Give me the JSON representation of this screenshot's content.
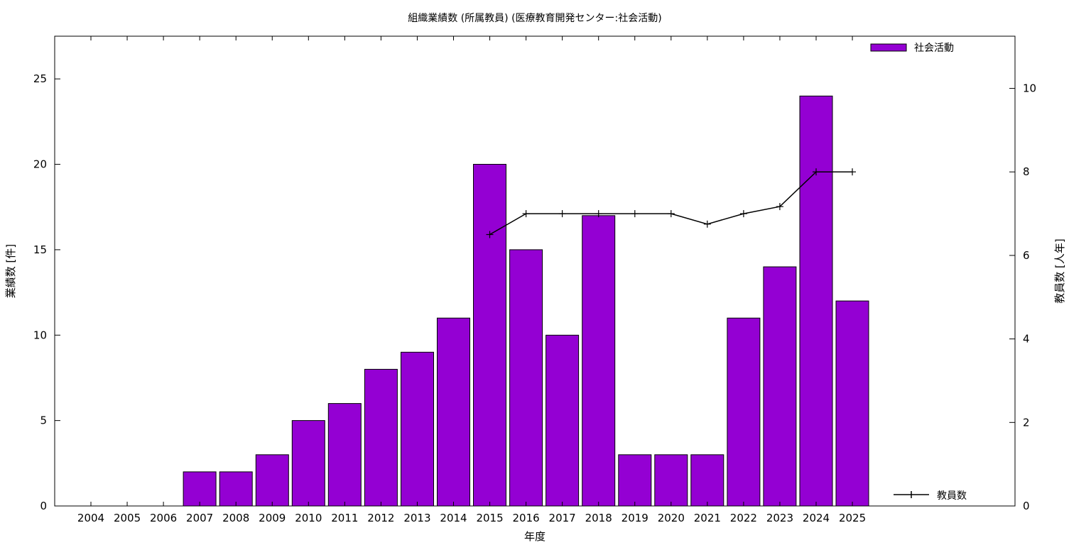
{
  "chart_data": {
    "type": "bar",
    "title": "組織業績数 (所属教員) (医療教育開発センター:社会活動)",
    "xlabel": "年度",
    "ylabel": "業績数 [件]",
    "y2label": "教員数 [人年]",
    "categories": [
      "2004",
      "2005",
      "2006",
      "2007",
      "2008",
      "2009",
      "2010",
      "2011",
      "2012",
      "2013",
      "2014",
      "2015",
      "2016",
      "2017",
      "2018",
      "2019",
      "2020",
      "2021",
      "2022",
      "2023",
      "2024",
      "2025"
    ],
    "ylim": [
      0,
      27.5
    ],
    "y2lim": [
      0,
      11.25
    ],
    "yticks": [
      0,
      5,
      10,
      15,
      20,
      25
    ],
    "y2ticks": [
      0,
      2,
      4,
      6,
      8,
      10
    ],
    "grid": false,
    "series": [
      {
        "name": "社会活動",
        "kind": "bar",
        "axis": "left",
        "color": "#9400d3",
        "values": [
          0,
          0,
          0,
          2,
          2,
          3,
          5,
          6,
          8,
          9,
          11,
          20,
          15,
          10,
          17,
          3,
          3,
          3,
          11,
          14,
          24,
          12
        ]
      },
      {
        "name": "教員数",
        "kind": "line",
        "axis": "right",
        "color": "#000000",
        "values": [
          null,
          null,
          null,
          null,
          null,
          null,
          null,
          null,
          null,
          null,
          null,
          6.5,
          7,
          7,
          7,
          7,
          7,
          6.75,
          7,
          7.17,
          8,
          8
        ]
      }
    ],
    "legend": [
      {
        "label": "社会活動",
        "position": "top-right"
      },
      {
        "label": "教員数",
        "position": "bottom-right"
      }
    ]
  }
}
